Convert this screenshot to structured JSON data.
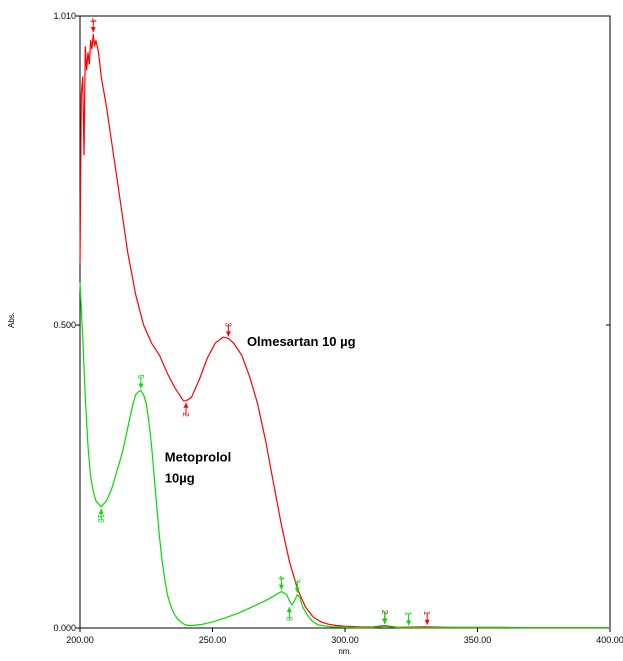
{
  "chart_data": {
    "type": "line",
    "title": "",
    "xlabel": "nm.",
    "ylabel": "Abs.",
    "xlim": [
      200,
      400
    ],
    "ylim": [
      0,
      1.01
    ],
    "x_ticks": [
      200,
      250,
      300,
      350,
      400
    ],
    "x_tick_labels": [
      "200.00",
      "250.00",
      "300.00",
      "350.00",
      "400.00"
    ],
    "y_ticks": [
      0,
      0.5,
      1.01
    ],
    "y_tick_labels": [
      "0.000",
      "0.500",
      "1.010"
    ],
    "grid": false,
    "legend": "none",
    "series": [
      {
        "color": "#ff0000",
        "x": [
          200,
          200.5,
          201,
          201.5,
          202,
          202.5,
          203,
          203.5,
          204,
          204.5,
          205,
          205.5,
          206,
          207,
          208,
          210,
          212,
          215,
          218,
          221,
          224,
          227,
          230,
          233,
          236,
          239,
          240,
          242,
          245,
          248,
          251,
          254,
          256,
          258,
          261,
          264,
          267,
          270,
          273,
          276,
          279,
          282,
          285,
          288,
          291,
          294,
          297,
          300,
          305,
          310,
          315,
          320,
          330,
          340,
          350,
          360,
          370,
          380,
          390,
          400
        ],
        "y": [
          0.6,
          0.88,
          0.91,
          0.78,
          0.96,
          0.92,
          0.95,
          0.93,
          0.97,
          0.955,
          0.98,
          0.96,
          0.97,
          0.95,
          0.91,
          0.86,
          0.8,
          0.71,
          0.62,
          0.55,
          0.5,
          0.47,
          0.45,
          0.42,
          0.395,
          0.375,
          0.375,
          0.38,
          0.41,
          0.445,
          0.47,
          0.48,
          0.478,
          0.47,
          0.45,
          0.415,
          0.37,
          0.31,
          0.24,
          0.17,
          0.11,
          0.065,
          0.035,
          0.018,
          0.01,
          0.006,
          0.004,
          0.003,
          0.002,
          0.0015,
          0.004,
          0.001,
          0.002,
          0.001,
          0.001,
          0.001,
          0.0005,
          0.0005,
          0.0005,
          0.0005
        ]
      },
      {
        "color": "#00dd00",
        "x": [
          200,
          201,
          202,
          203,
          204,
          205,
          206,
          207,
          208,
          209,
          210,
          211,
          212,
          213,
          214,
          215,
          216,
          217,
          218,
          219,
          220,
          221,
          222,
          223,
          224,
          225,
          226,
          227,
          228,
          229,
          230,
          231,
          232,
          233,
          234,
          235,
          236,
          237,
          238,
          239,
          240,
          242,
          244,
          246,
          248,
          250,
          255,
          260,
          265,
          270,
          272,
          274,
          276,
          278,
          279,
          280,
          281,
          282,
          283,
          284,
          286,
          288,
          290,
          295,
          300,
          305,
          310,
          315,
          320,
          330,
          340,
          350,
          360,
          370,
          380,
          390,
          400
        ],
        "y": [
          0.57,
          0.48,
          0.38,
          0.3,
          0.25,
          0.225,
          0.21,
          0.205,
          0.2,
          0.205,
          0.21,
          0.22,
          0.23,
          0.245,
          0.26,
          0.275,
          0.29,
          0.31,
          0.33,
          0.35,
          0.37,
          0.385,
          0.39,
          0.392,
          0.385,
          0.37,
          0.34,
          0.3,
          0.25,
          0.2,
          0.15,
          0.11,
          0.08,
          0.055,
          0.04,
          0.028,
          0.02,
          0.014,
          0.01,
          0.007,
          0.005,
          0.004,
          0.005,
          0.006,
          0.008,
          0.01,
          0.017,
          0.025,
          0.035,
          0.045,
          0.05,
          0.055,
          0.06,
          0.055,
          0.045,
          0.038,
          0.045,
          0.055,
          0.05,
          0.035,
          0.02,
          0.01,
          0.005,
          0.002,
          0.001,
          0.0005,
          0.0005,
          0.003,
          0.0005,
          0.0005,
          0.0005,
          0.0005,
          0.0005,
          0.0005,
          0.0005,
          0.0005,
          0.0005
        ]
      }
    ],
    "annotations": [
      {
        "text": "Olmesartan 10 µg",
        "x": 263,
        "y": 0.465
      },
      {
        "text": "Metoprolol",
        "x": 232,
        "y": 0.275
      },
      {
        "text": "10µg",
        "x": 232,
        "y": 0.24
      }
    ],
    "peak_labels": [
      {
        "text": "4",
        "x": 205,
        "y": 0.98,
        "series": 0,
        "marker": "peak"
      },
      {
        "text": "3",
        "x": 256,
        "y": 0.478,
        "series": 0,
        "marker": "peak"
      },
      {
        "text": "2",
        "x": 240,
        "y": 0.375,
        "series": 0,
        "marker": "valley"
      },
      {
        "text": "2",
        "x": 315,
        "y": 0.004,
        "series": 0,
        "marker": "peak"
      },
      {
        "text": "1",
        "x": 331,
        "y": 0.002,
        "series": 0,
        "marker": "peak"
      },
      {
        "text": "5",
        "x": 223,
        "y": 0.392,
        "series": 1,
        "marker": "peak"
      },
      {
        "text": "10",
        "x": 208,
        "y": 0.2,
        "series": 1,
        "marker": "valley"
      },
      {
        "text": "4",
        "x": 276,
        "y": 0.06,
        "series": 1,
        "marker": "peak"
      },
      {
        "text": "8",
        "x": 279,
        "y": 0.038,
        "series": 1,
        "marker": "valley"
      },
      {
        "text": "3",
        "x": 282,
        "y": 0.055,
        "series": 1,
        "marker": "peak"
      },
      {
        "text": "2",
        "x": 315,
        "y": 0.003,
        "series": 1,
        "marker": "peak"
      },
      {
        "text": "1",
        "x": 324,
        "y": 0.001,
        "series": 1,
        "marker": "peak"
      }
    ]
  }
}
